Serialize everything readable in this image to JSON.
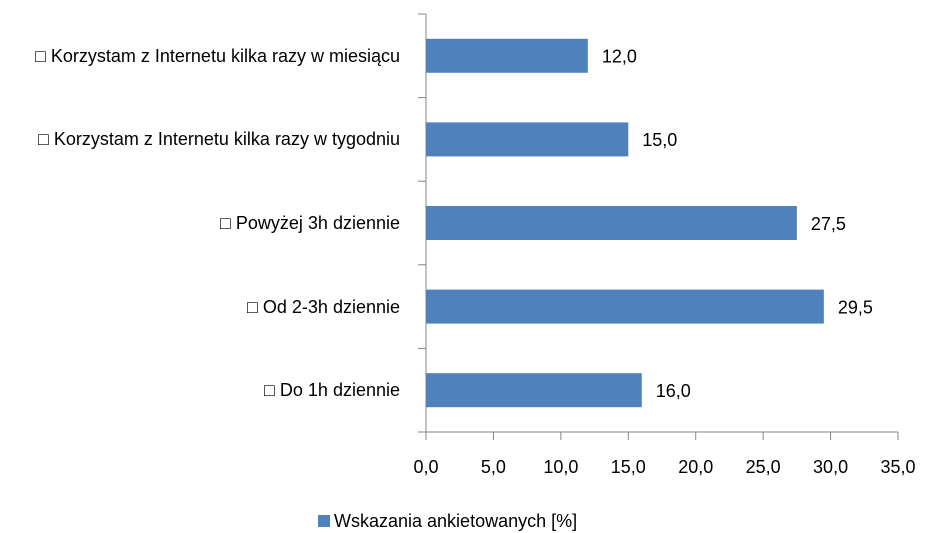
{
  "chart_data": {
    "type": "bar",
    "orientation": "horizontal",
    "categories": [
      "□ Korzystam z Internetu kilka razy w miesiącu",
      "□ Korzystam z Internetu kilka razy w tygodniu",
      "□ Powyżej 3h dziennie",
      "□ Od 2-3h dziennie",
      "□ Do 1h dziennie"
    ],
    "series": [
      {
        "name": "Wskazania ankietowanych [%]",
        "color": "#4f81bd",
        "values": [
          12.0,
          15.0,
          27.5,
          29.5,
          16.0
        ],
        "value_labels": [
          "12,0",
          "15,0",
          "27,5",
          "29,5",
          "16,0"
        ]
      }
    ],
    "xlim": [
      0,
      35
    ],
    "xticks": [
      {
        "value": 0,
        "label": "0,0"
      },
      {
        "value": 5,
        "label": "5,0"
      },
      {
        "value": 10,
        "label": "10,0"
      },
      {
        "value": 15,
        "label": "15,0"
      },
      {
        "value": 20,
        "label": "20,0"
      },
      {
        "value": 25,
        "label": "25,0"
      },
      {
        "value": 30,
        "label": "30,0"
      },
      {
        "value": 35,
        "label": "35,0"
      }
    ],
    "legend": "bottom"
  }
}
